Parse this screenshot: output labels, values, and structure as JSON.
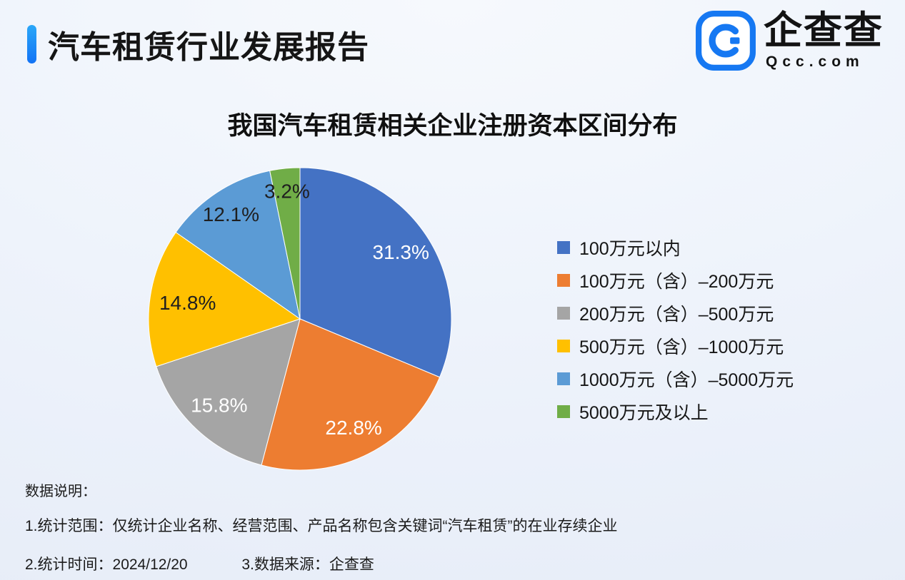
{
  "page": {
    "title": "汽车租赁行业发展报告",
    "accent_color": "#1677f5"
  },
  "logo": {
    "name": "企查查",
    "domain": "Qcc.com",
    "color": "#1678f2"
  },
  "chart_data": {
    "type": "pie",
    "title": "我国汽车租赁相关企业注册资本区间分布",
    "legend_position": "right",
    "value_suffix": "%",
    "start_angle_deg": 0,
    "direction": "clockwise",
    "slices": [
      {
        "label": "100万元以内",
        "value": 31.3,
        "color": "#4472C4",
        "label_color": "#ffffff",
        "label_radius": 0.8
      },
      {
        "label": "100万元（含）–200万元",
        "value": 22.8,
        "color": "#ED7D31",
        "label_color": "#ffffff",
        "label_radius": 0.8
      },
      {
        "label": "200万元（含）–500万元",
        "value": 15.8,
        "color": "#A5A5A5",
        "label_color": "#ffffff",
        "label_radius": 0.78
      },
      {
        "label": "500万元（含）–1000万元",
        "value": 14.8,
        "color": "#FFC000",
        "label_color": "#1f1f1f",
        "label_radius": 0.75
      },
      {
        "label": "1000万元（含）–5000万元",
        "value": 12.1,
        "color": "#5B9BD5",
        "label_color": "#1f1f1f",
        "label_radius": 0.83
      },
      {
        "label": "5000万元及以上",
        "value": 3.2,
        "color": "#70AD47",
        "label_color": "#1f1f1f",
        "label_radius": 0.85
      }
    ]
  },
  "notes": {
    "heading": "数据说明：",
    "line1": "1.统计范围：仅统计企业名称、经营范围、产品名称包含关键词“汽车租赁”的在业存续企业",
    "line2_part1": "2.统计时间：2024/12/20",
    "line2_part2": "3.数据来源：企查查"
  }
}
